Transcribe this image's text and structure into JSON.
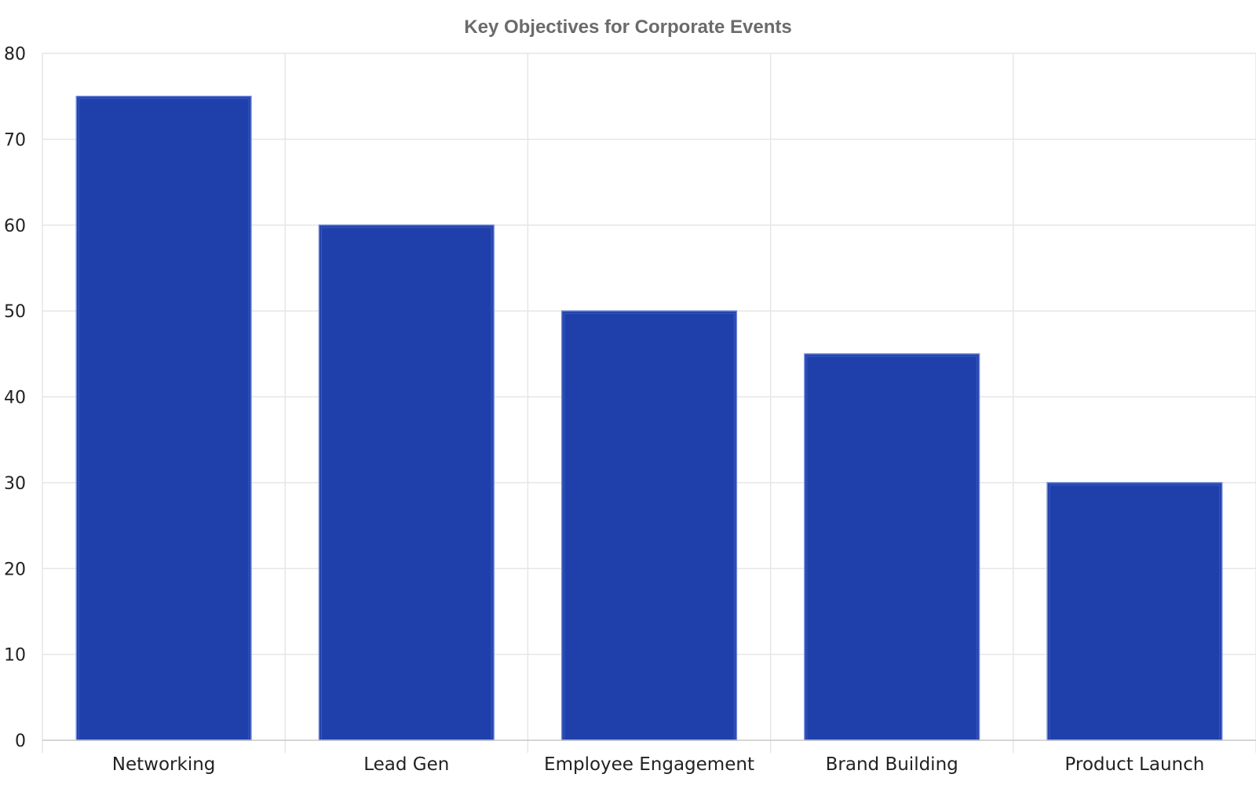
{
  "chart_data": {
    "type": "bar",
    "title": "Key Objectives for Corporate Events",
    "xlabel": "",
    "ylabel": "",
    "categories": [
      "Networking",
      "Lead Gen",
      "Employee Engagement",
      "Brand Building",
      "Product Launch"
    ],
    "values": [
      75,
      60,
      50,
      45,
      30
    ],
    "ylim": [
      0,
      80
    ],
    "yticks": [
      0,
      10,
      20,
      30,
      40,
      50,
      60,
      70,
      80
    ],
    "grid": true,
    "legend": "none",
    "colors": {
      "bar": "#1f40ab",
      "bar_edge": "#6f86d6",
      "grid": "#e6e6e6",
      "title": "#6b6b6b"
    }
  }
}
